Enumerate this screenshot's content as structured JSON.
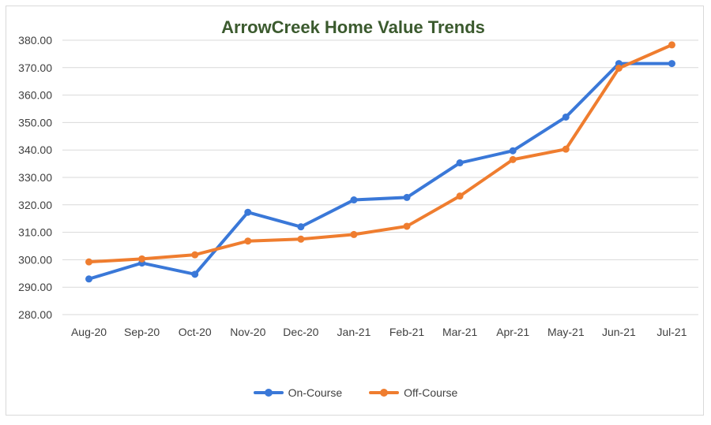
{
  "chart_data": {
    "type": "line",
    "title": "ArrowCreek Home Value Trends",
    "categories": [
      "Aug-20",
      "Sep-20",
      "Oct-20",
      "Nov-20",
      "Dec-20",
      "Jan-21",
      "Feb-21",
      "Mar-21",
      "Apr-21",
      "May-21",
      "Jun-21",
      "Jul-21"
    ],
    "ylim": [
      280,
      380
    ],
    "yticks": [
      "280.00",
      "290.00",
      "300.00",
      "310.00",
      "320.00",
      "330.00",
      "340.00",
      "350.00",
      "360.00",
      "370.00",
      "380.00"
    ],
    "grid": true,
    "legend_position": "bottom",
    "series": [
      {
        "name": "On-Course",
        "color": "#3a78d8",
        "values": [
          293.0,
          298.8,
          294.7,
          317.3,
          312.0,
          321.8,
          322.7,
          335.3,
          339.7,
          352.0,
          371.5,
          371.5
        ]
      },
      {
        "name": "Off-Course",
        "color": "#ef7d2f",
        "values": [
          299.2,
          300.3,
          301.8,
          306.8,
          307.5,
          309.2,
          312.2,
          323.2,
          336.5,
          340.3,
          369.8,
          378.3
        ]
      }
    ]
  }
}
